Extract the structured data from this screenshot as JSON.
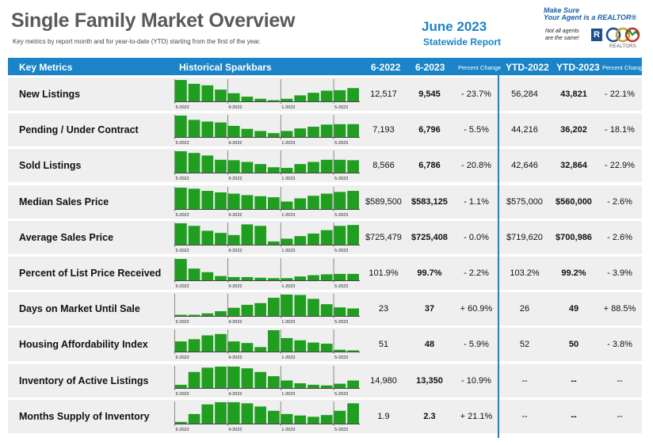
{
  "header": {
    "title": "Single Family Market Overview",
    "subtitle": "Key metrics by report month and for year-to-date (YTD) starting from the first of the year.",
    "report_month": "June 2023",
    "report_scope": "Statewide Report"
  },
  "logo": {
    "tagline_1": "Make Sure",
    "tagline_2": "Your Agent is a REALTOR®",
    "small_1": "Not all agents",
    "small_2": "are the same!",
    "r_mark": "R",
    "org_text": "REALTORS"
  },
  "columns": {
    "key_metrics": "Key Metrics",
    "sparkbars": "Historical Sparkbars",
    "prior_month": "6-2022",
    "current_month": "6-2023",
    "pct_change": "Percent Change",
    "ytd_prior": "YTD-2022",
    "ytd_current": "YTD-2023",
    "ytd_pct_change": "Percent Change"
  },
  "colors": {
    "accent": "#1b84c8",
    "bar": "#1f9e1f",
    "row_bg": "#efefef",
    "title": "#5a5a5a"
  },
  "chart_data": {
    "type": "bar",
    "x_tick_labels": [
      "5-2022",
      "9-2022",
      "1-2023",
      "5-2023"
    ],
    "x_tick_positions": [
      0,
      4,
      8,
      12
    ],
    "rows": [
      {
        "metric": "New Listings",
        "sparkbars": [
          100,
          82,
          75,
          55,
          38,
          22,
          12,
          5,
          12,
          28,
          40,
          50,
          52,
          62
        ],
        "prior": "12,517",
        "current": "9,545",
        "pct": "- 23.7%",
        "ytd_prior": "56,284",
        "ytd_current": "43,821",
        "ytd_pct": "- 22.1%"
      },
      {
        "metric": "Pending / Under Contract",
        "sparkbars": [
          100,
          80,
          72,
          68,
          52,
          38,
          28,
          18,
          28,
          40,
          48,
          58,
          60,
          60
        ],
        "prior": "7,193",
        "current": "6,796",
        "pct": "- 5.5%",
        "ytd_prior": "44,216",
        "ytd_current": "36,202",
        "ytd_pct": "- 18.1%"
      },
      {
        "metric": "Sold Listings",
        "sparkbars": [
          100,
          92,
          80,
          60,
          58,
          50,
          40,
          25,
          22,
          40,
          50,
          60,
          60,
          58
        ],
        "prior": "8,566",
        "current": "6,786",
        "pct": "- 20.8%",
        "ytd_prior": "42,646",
        "ytd_current": "32,864",
        "ytd_pct": "- 22.9%"
      },
      {
        "metric": "Median Sales Price",
        "sparkbars": [
          100,
          95,
          85,
          78,
          72,
          65,
          60,
          55,
          35,
          50,
          62,
          72,
          80,
          85
        ],
        "prior": "$589,500",
        "current": "$583,125",
        "pct": "- 1.1%",
        "ytd_prior": "$575,000",
        "ytd_current": "$560,000",
        "ytd_pct": "- 2.6%"
      },
      {
        "metric": "Average Sales Price",
        "sparkbars": [
          100,
          88,
          65,
          55,
          45,
          95,
          88,
          15,
          28,
          40,
          52,
          68,
          88,
          92
        ],
        "prior": "$725,479",
        "current": "$725,408",
        "pct": "- 0.0%",
        "ytd_prior": "$719,620",
        "ytd_current": "$700,986",
        "ytd_pct": "- 2.6%"
      },
      {
        "metric": "Percent of List Price Received",
        "sparkbars": [
          100,
          55,
          38,
          20,
          15,
          15,
          12,
          10,
          10,
          18,
          24,
          28,
          30,
          30
        ],
        "prior": "101.9%",
        "current": "99.7%",
        "pct": "- 2.2%",
        "ytd_prior": "103.2%",
        "ytd_current": "99.2%",
        "ytd_pct": "- 3.9%"
      },
      {
        "metric": "Days on Market Until Sale",
        "sparkbars": [
          5,
          5,
          12,
          22,
          38,
          52,
          60,
          85,
          100,
          98,
          80,
          55,
          40,
          35
        ],
        "prior": "23",
        "current": "37",
        "pct": "+ 60.9%",
        "ytd_prior": "26",
        "ytd_current": "49",
        "ytd_pct": "+ 88.5%"
      },
      {
        "metric": "Housing Affordability Index",
        "sparkbars": [
          45,
          55,
          72,
          78,
          45,
          38,
          20,
          95,
          60,
          50,
          40,
          35,
          8,
          5
        ],
        "prior": "51",
        "current": "48",
        "pct": "- 5.9%",
        "ytd_prior": "52",
        "ytd_current": "50",
        "ytd_pct": "- 3.8%"
      },
      {
        "metric": "Inventory of Active Listings",
        "sparkbars": [
          15,
          75,
          95,
          100,
          100,
          92,
          75,
          55,
          35,
          22,
          15,
          12,
          20,
          35
        ],
        "prior": "14,980",
        "current": "13,350",
        "pct": "- 10.9%",
        "ytd_prior": "--",
        "ytd_current": "--",
        "ytd_pct": "--"
      },
      {
        "metric": "Months Supply of Inventory",
        "sparkbars": [
          8,
          45,
          90,
          100,
          100,
          95,
          80,
          60,
          45,
          38,
          32,
          40,
          60,
          95
        ],
        "prior": "1.9",
        "current": "2.3",
        "pct": "+ 21.1%",
        "ytd_prior": "--",
        "ytd_current": "--",
        "ytd_pct": "--"
      }
    ]
  }
}
